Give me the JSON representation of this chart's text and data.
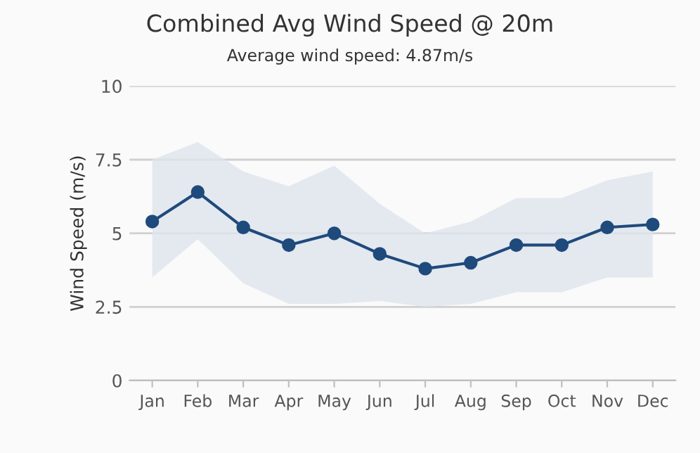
{
  "chart_data": {
    "type": "line",
    "title": "Combined Avg Wind Speed @ 20m",
    "subtitle": "Average wind speed: 4.87m/s",
    "ylabel": "Wind Speed (m/s)",
    "categories": [
      "Jan",
      "Feb",
      "Mar",
      "Apr",
      "May",
      "Jun",
      "Jul",
      "Aug",
      "Sep",
      "Oct",
      "Nov",
      "Dec"
    ],
    "series": [
      {
        "color": "#1f4a7c",
        "values": [
          5.4,
          6.4,
          5.2,
          4.6,
          5.0,
          4.3,
          3.8,
          4.0,
          4.6,
          4.6,
          5.2,
          5.3
        ],
        "lower": [
          3.5,
          4.8,
          3.3,
          2.6,
          2.6,
          2.7,
          2.5,
          2.6,
          3.0,
          3.0,
          3.5,
          3.5
        ],
        "upper": [
          7.5,
          8.1,
          7.1,
          6.6,
          7.3,
          6.0,
          5.0,
          5.4,
          6.2,
          6.2,
          6.8,
          7.1
        ]
      }
    ],
    "ylim": [
      0,
      10
    ],
    "yticks": [
      0,
      2.5,
      5,
      7.5,
      10
    ],
    "grid": "y",
    "marker": "circle",
    "line_style": "solid",
    "legend": false
  }
}
